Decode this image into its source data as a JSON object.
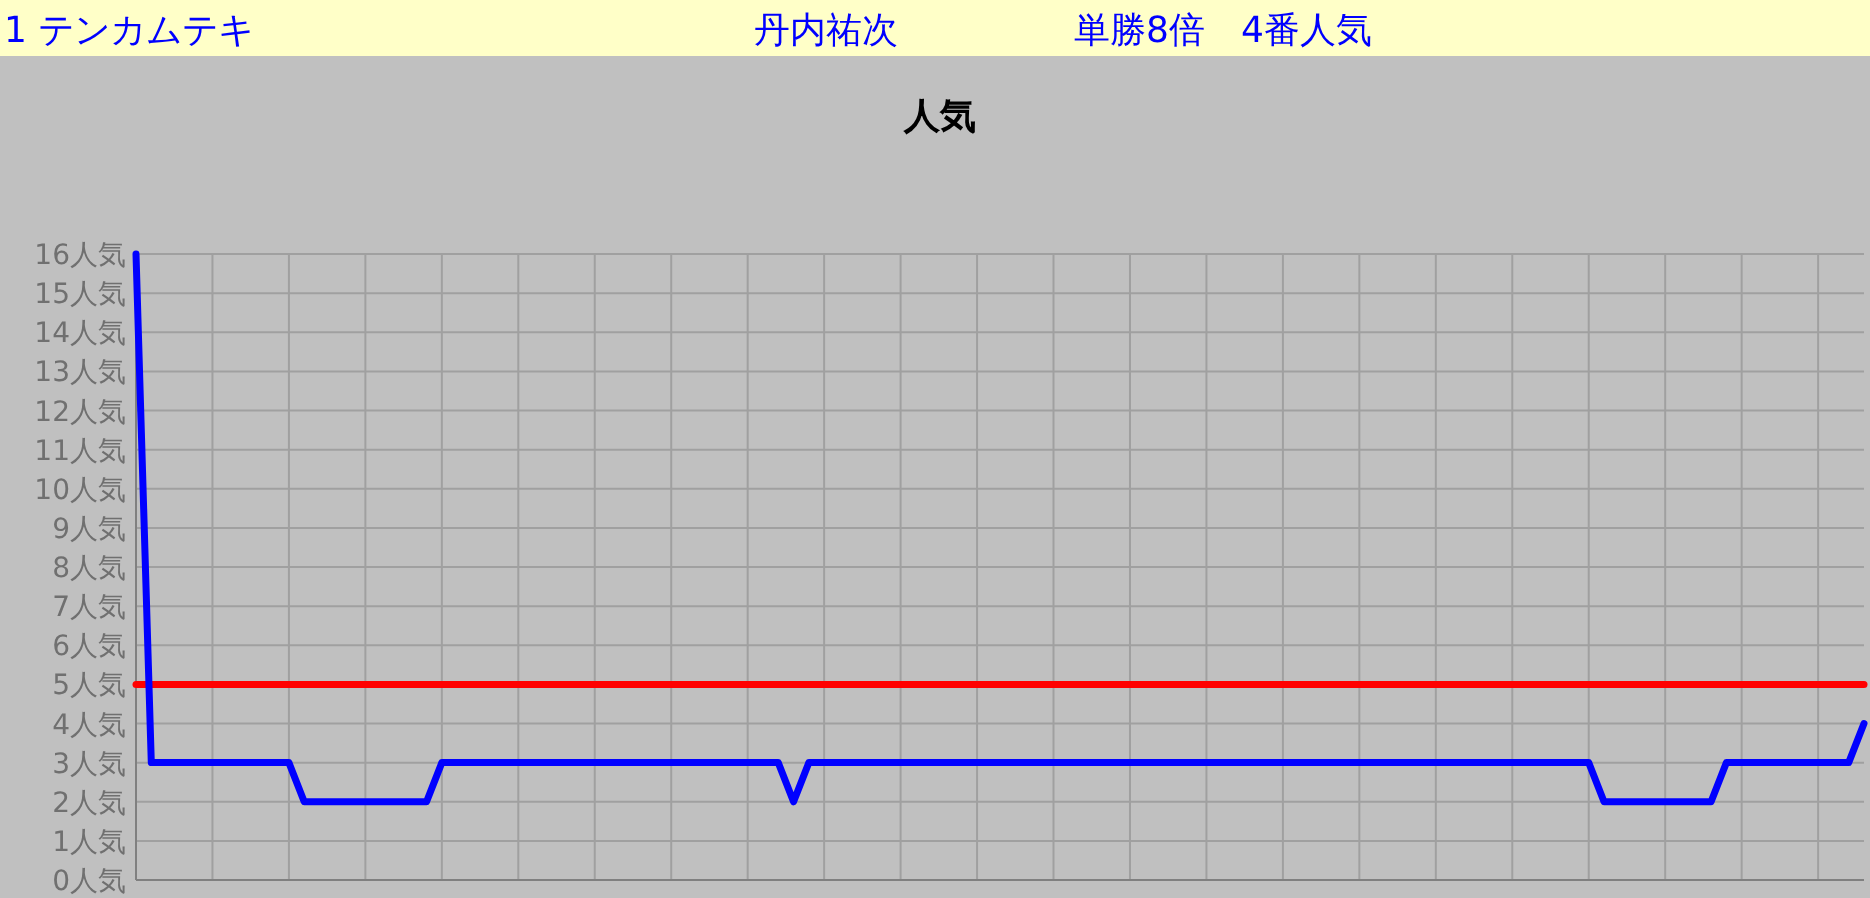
{
  "chart_data": {
    "type": "line",
    "title": "人気",
    "annotations": [
      "1 テンカムテキ",
      "丹内祐次",
      "単勝8倍　4番人気"
    ],
    "categories": [
      null,
      null,
      null,
      null,
      null,
      null,
      null,
      null,
      null,
      null,
      null,
      null,
      null,
      null,
      null,
      null,
      null,
      null,
      null,
      null,
      null,
      null,
      null,
      null,
      null,
      null,
      null,
      null,
      null,
      null,
      null,
      null,
      null,
      null,
      null,
      null,
      null,
      null,
      null,
      null,
      null,
      null,
      null,
      null,
      null,
      null,
      null,
      null,
      null,
      null,
      null,
      null,
      null,
      null,
      null,
      null,
      null,
      null,
      null,
      null,
      null,
      null,
      null,
      null,
      null,
      null,
      null,
      null,
      null,
      null,
      null,
      null,
      null,
      null,
      null,
      null,
      null,
      null,
      null,
      null,
      null,
      null,
      null,
      null,
      null,
      null,
      null,
      null,
      null,
      null,
      null,
      null,
      null,
      null,
      null,
      null,
      null,
      null,
      null,
      null,
      null,
      null,
      null,
      null,
      null,
      null,
      null,
      null,
      null,
      null,
      null,
      null,
      null,
      null
    ],
    "series": [
      {
        "color": "#0000ff",
        "values": [
          16,
          3,
          3,
          3,
          3,
          3,
          3,
          3,
          3,
          3,
          3,
          2,
          2,
          2,
          2,
          2,
          2,
          2,
          2,
          2,
          3,
          3,
          3,
          3,
          3,
          3,
          3,
          3,
          3,
          3,
          3,
          3,
          3,
          3,
          3,
          3,
          3,
          3,
          3,
          3,
          3,
          3,
          3,
          2,
          3,
          3,
          3,
          3,
          3,
          3,
          3,
          3,
          3,
          3,
          3,
          3,
          3,
          3,
          3,
          3,
          3,
          3,
          3,
          3,
          3,
          3,
          3,
          3,
          3,
          3,
          3,
          3,
          3,
          3,
          3,
          3,
          3,
          3,
          3,
          3,
          3,
          3,
          3,
          3,
          3,
          3,
          3,
          3,
          3,
          3,
          3,
          3,
          3,
          3,
          3,
          3,
          2,
          2,
          2,
          2,
          2,
          2,
          2,
          2,
          3,
          3,
          3,
          3,
          3,
          3,
          3,
          3,
          3,
          4
        ]
      },
      {
        "color": "#ff0000",
        "values": [
          5,
          5,
          5,
          5,
          5,
          5,
          5,
          5,
          5,
          5,
          5,
          5,
          5,
          5,
          5,
          5,
          5,
          5,
          5,
          5,
          5,
          5,
          5,
          5,
          5,
          5,
          5,
          5,
          5,
          5,
          5,
          5,
          5,
          5,
          5,
          5,
          5,
          5,
          5,
          5,
          5,
          5,
          5,
          5,
          5,
          5,
          5,
          5,
          5,
          5,
          5,
          5,
          5,
          5,
          5,
          5,
          5,
          5,
          5,
          5,
          5,
          5,
          5,
          5,
          5,
          5,
          5,
          5,
          5,
          5,
          5,
          5,
          5,
          5,
          5,
          5,
          5,
          5,
          5,
          5,
          5,
          5,
          5,
          5,
          5,
          5,
          5,
          5,
          5,
          5,
          5,
          5,
          5,
          5,
          5,
          5,
          5,
          5,
          5,
          5,
          5,
          5,
          5,
          5,
          5,
          5,
          5,
          5,
          5,
          5,
          5,
          5,
          5,
          5
        ]
      }
    ],
    "ylim": [
      0,
      16
    ],
    "yticks": [
      {
        "value": 0,
        "label": "0人気"
      },
      {
        "value": 1,
        "label": "1人気"
      },
      {
        "value": 2,
        "label": "2人気"
      },
      {
        "value": 3,
        "label": "3人気"
      },
      {
        "value": 4,
        "label": "4人気"
      },
      {
        "value": 5,
        "label": "5人気"
      },
      {
        "value": 6,
        "label": "6人気"
      },
      {
        "value": 7,
        "label": "7人気"
      },
      {
        "value": 8,
        "label": "8人気"
      },
      {
        "value": 9,
        "label": "9人気"
      },
      {
        "value": 10,
        "label": "10人気"
      },
      {
        "value": 11,
        "label": "11人気"
      },
      {
        "value": 12,
        "label": "12人気"
      },
      {
        "value": 13,
        "label": "13人気"
      },
      {
        "value": 14,
        "label": "14人気"
      },
      {
        "value": 15,
        "label": "15人気"
      },
      {
        "value": 16,
        "label": "16人気"
      }
    ],
    "grid": true,
    "marker": "none",
    "line_style": "solid"
  }
}
